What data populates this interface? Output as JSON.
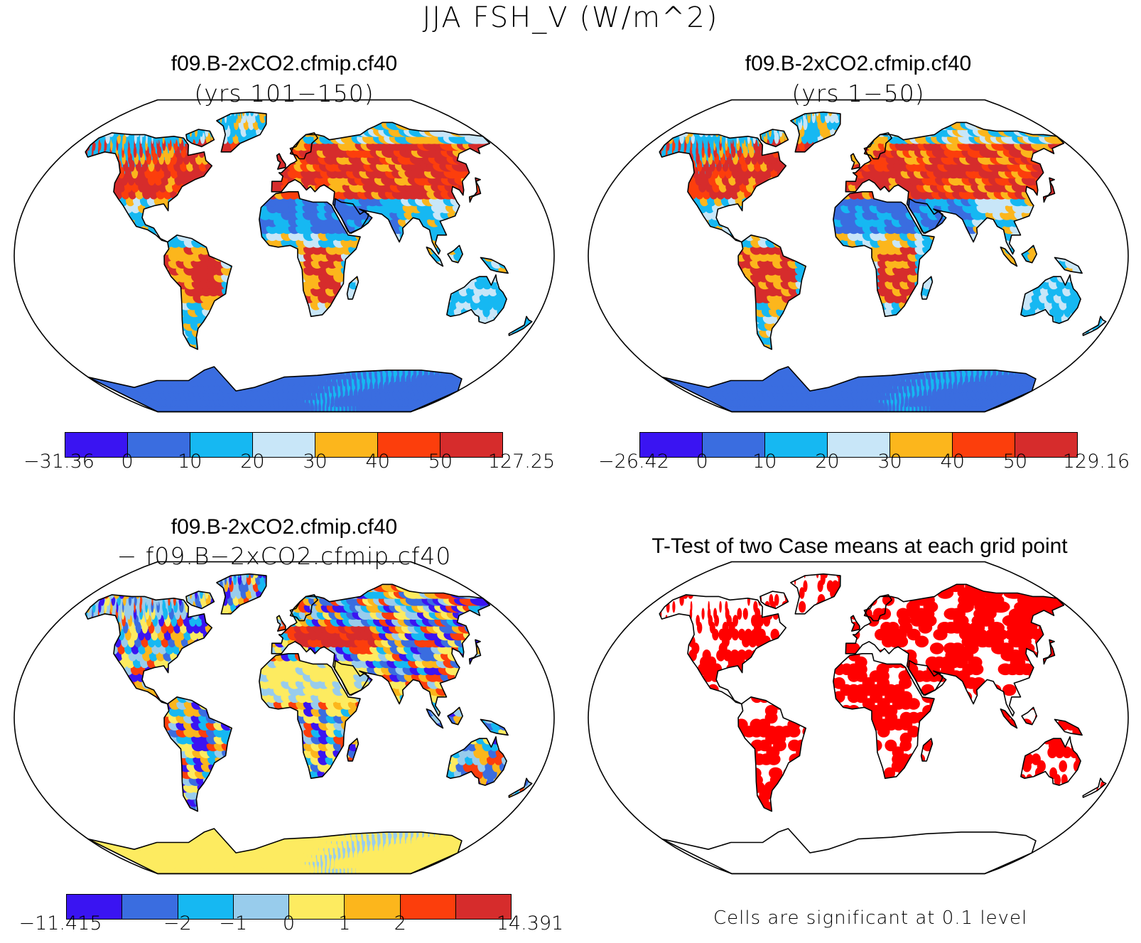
{
  "title": "JJA FSH_V (W/m^2)",
  "colors": {
    "violet": "#3a14f2",
    "blue": "#3a6de0",
    "cyan": "#16b8f2",
    "lightblue": "#c8e6f8",
    "lightblue2": "#98ccec",
    "yellow": "#fdeb60",
    "orange": "#fcb61c",
    "redorange": "#fc3e0c",
    "red": "#d62c2c",
    "sigred": "#ff0000"
  },
  "panels": [
    {
      "id": "case1",
      "title": "f09.B-2xCO2.cfmip.cf40",
      "subtitle": "(yrs 101−150)",
      "map_kind": "absolute",
      "colorbar": {
        "colors": [
          "#3a14f2",
          "#3a6de0",
          "#16b8f2",
          "#c8e6f8",
          "#fcb61c",
          "#fc3e0c",
          "#d62c2c"
        ],
        "ticks": [
          "−31.36",
          "0",
          "10",
          "20",
          "30",
          "40",
          "50",
          "127.25"
        ]
      }
    },
    {
      "id": "case2",
      "title": "f09.B-2xCO2.cfmip.cf40",
      "subtitle": "(yrs 1−50)",
      "map_kind": "absolute",
      "colorbar": {
        "colors": [
          "#3a14f2",
          "#3a6de0",
          "#16b8f2",
          "#c8e6f8",
          "#fcb61c",
          "#fc3e0c",
          "#d62c2c"
        ],
        "ticks": [
          "−26.42",
          "0",
          "10",
          "20",
          "30",
          "40",
          "50",
          "129.16"
        ]
      }
    },
    {
      "id": "diff",
      "title": "f09.B-2xCO2.cfmip.cf40",
      "subtitle": "− f09.B−2xCO2.cfmip.cf40",
      "map_kind": "difference",
      "colorbar": {
        "colors": [
          "#3a14f2",
          "#3a6de0",
          "#16b8f2",
          "#98ccec",
          "#fdeb60",
          "#fcb61c",
          "#fc3e0c",
          "#d62c2c"
        ],
        "ticks": [
          "−11.415",
          "",
          "−2",
          "−1",
          "0",
          "1",
          "2",
          "",
          "14.391"
        ]
      }
    },
    {
      "id": "ttest",
      "title": "T-Test of two Case means at each grid point",
      "subtitle": "",
      "map_kind": "significance",
      "note": "Cells are significant at 0.1 level"
    }
  ]
}
